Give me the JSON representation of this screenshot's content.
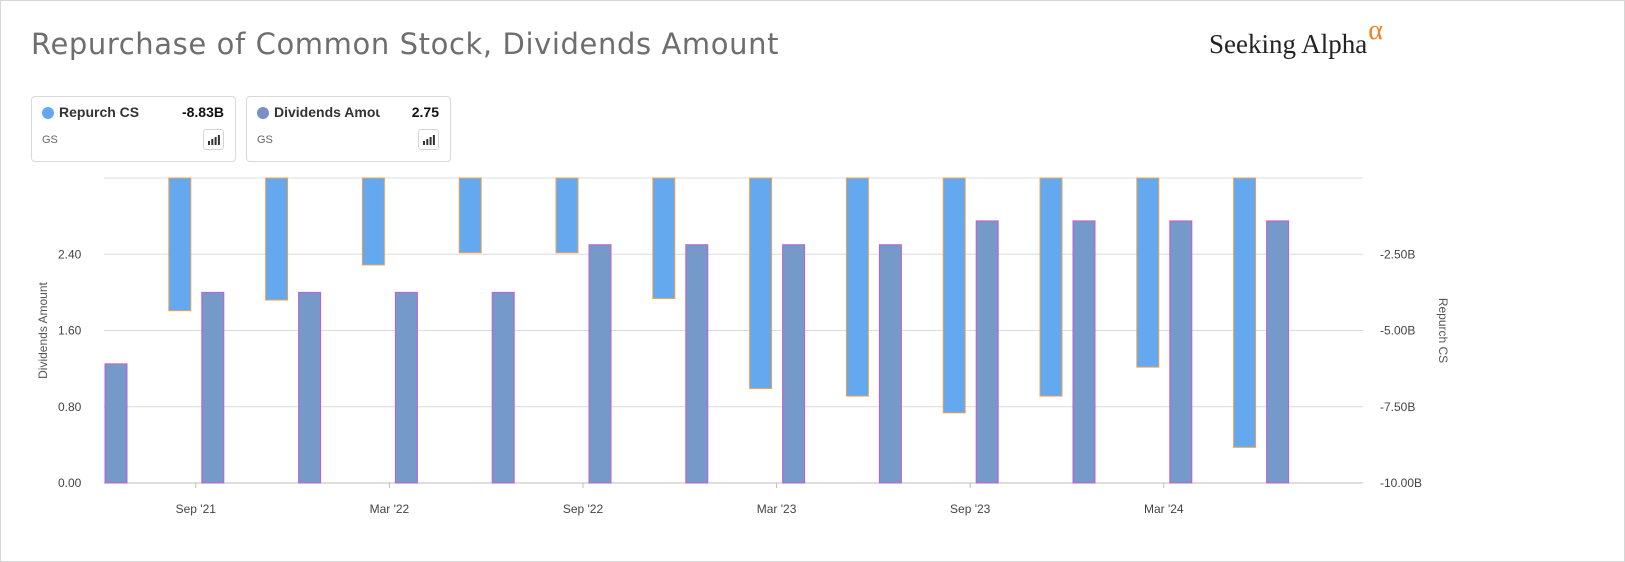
{
  "title": "Repurchase of Common Stock, Dividends Amount",
  "brand": {
    "text": "Seeking Alpha",
    "symbol": "α"
  },
  "legend": [
    {
      "name": "Repurch CS",
      "value": "-8.83B",
      "ticker": "GS",
      "color": "#64a8f0",
      "icon": "bar-chart-icon"
    },
    {
      "name": "Dividends Amou",
      "value": "2.75",
      "ticker": "GS",
      "color": "#7b8fc7",
      "icon": "bar-chart-icon"
    }
  ],
  "chart_data": {
    "type": "bar",
    "x_tick_labels": [
      "Sep '21",
      "Mar '22",
      "Sep '22",
      "Mar '23",
      "Sep '23",
      "Mar '24"
    ],
    "series": [
      {
        "name": "Repurch CS",
        "axis": "right",
        "color": "#64a8f0",
        "edge_color": "#f0a24a",
        "values": [
          0,
          -4.35,
          -4.0,
          -2.85,
          -2.45,
          -2.45,
          -3.95,
          -6.9,
          -7.15,
          -7.7,
          -7.15,
          -6.2,
          -8.83
        ]
      },
      {
        "name": "Dividends Amount",
        "axis": "left",
        "color": "#7599c8",
        "edge_color": "#c45cd4",
        "values": [
          1.25,
          2.0,
          2.0,
          2.0,
          2.0,
          2.5,
          2.5,
          2.5,
          2.5,
          2.75,
          2.75,
          2.75,
          2.75
        ]
      }
    ],
    "left_axis": {
      "label": "Dividends Amount",
      "ticks": [
        "0.00",
        "0.80",
        "1.60",
        "2.40"
      ],
      "range": [
        0,
        3.2
      ]
    },
    "right_axis": {
      "label": "Repurch CS",
      "ticks": [
        "-10.00B",
        "-7.50B",
        "-5.00B",
        "-2.50B"
      ],
      "range": [
        -10,
        0
      ]
    },
    "grid": true,
    "legend_position": "top-left"
  }
}
